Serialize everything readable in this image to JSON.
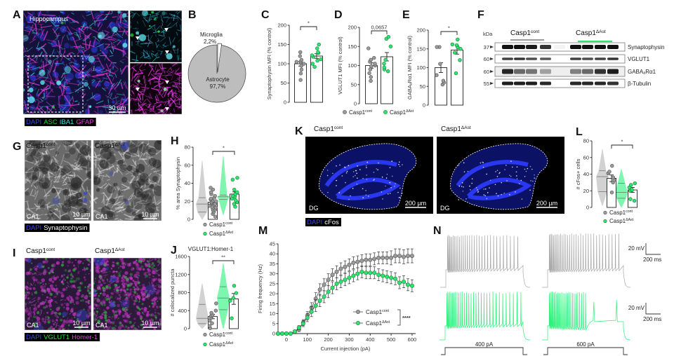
{
  "panel_labels": [
    "A",
    "B",
    "C",
    "D",
    "E",
    "F",
    "G",
    "H",
    "I",
    "J",
    "K",
    "L",
    "M",
    "N"
  ],
  "groups": {
    "base": "Casp1",
    "cont_sup": "cont",
    "ast_sup": "ΔAst"
  },
  "colors": {
    "control": "#9a9a9a",
    "ast": "#2fe36f",
    "violin_control": "#d2d2d2",
    "violin_ast": "#7cf7ad"
  },
  "panel_a": {
    "title": "Hippocampus",
    "scale": "30 µm",
    "legend": [
      {
        "text": "DAPI",
        "color": "#3347ff"
      },
      {
        "text": "ASC",
        "color": "#28c934"
      },
      {
        "text": "IBA1",
        "color": "#46dbe6"
      },
      {
        "text": "GFAP",
        "color": "#e63fe6"
      }
    ]
  },
  "panel_f": {
    "kda_label": "kDa",
    "markers": [
      "37",
      "60",
      "60",
      "55"
    ],
    "proteins": [
      "Synaptophysin",
      "VGLUT1",
      "GABAₐRα1",
      "β-Tubulin"
    ]
  },
  "panel_g": {
    "region": "CA1",
    "scale": "10 µm",
    "legend": [
      {
        "text": "DAPI",
        "color": "#3347ff"
      },
      {
        "text": "Synaptophysin",
        "color": "#ffffff"
      }
    ]
  },
  "panel_i": {
    "region": "CA1",
    "scale": "10 µm",
    "legend": [
      {
        "text": "DAPI",
        "color": "#3347ff"
      },
      {
        "text": "VGLUT1",
        "color": "#28e03a"
      },
      {
        "text": "Homer-1",
        "color": "#e63fe6"
      }
    ]
  },
  "panel_k": {
    "region": "DG",
    "scale": "200 µm",
    "legend": [
      {
        "text": "DAPI",
        "color": "#3347ff"
      },
      {
        "text": "cFos",
        "color": "#ffffff"
      }
    ]
  },
  "panel_n": {
    "scale_v": "20 mV",
    "scale_t": "200 ms",
    "steps": [
      "400 pA",
      "600 pA"
    ]
  },
  "chart_data": [
    {
      "panel": "B",
      "type": "pie",
      "slices": [
        {
          "label": "Astrocyte",
          "value": 97.7,
          "text": "97,7%",
          "color": "#bdbdbd"
        },
        {
          "label": "Microglia",
          "value": 2.2,
          "text": "2,2%",
          "color": "#ffffff"
        }
      ]
    },
    {
      "panel": "C",
      "type": "bar",
      "ylabel": "Synaptophysin MFI (% control)",
      "ylim": [
        0,
        200
      ],
      "yticks": [
        "0",
        "50",
        "100",
        "150",
        "200"
      ],
      "significance": "*",
      "series": [
        {
          "group": "control",
          "mean": 100,
          "sem": 6,
          "points": [
            58,
            75,
            85,
            95,
            100,
            103,
            105,
            106,
            110,
            120,
            130
          ]
        },
        {
          "group": "ast",
          "mean": 120,
          "sem": 6,
          "points": [
            92,
            100,
            108,
            112,
            118,
            122,
            128,
            130,
            140,
            150
          ]
        }
      ]
    },
    {
      "panel": "D",
      "type": "bar",
      "ylabel": "VGLUT1 MFI (% control)",
      "ylim": [
        0,
        200
      ],
      "yticks": [
        "0",
        "50",
        "100",
        "150",
        "200"
      ],
      "significance": "0,0657",
      "series": [
        {
          "group": "control",
          "mean": 100,
          "sem": 7,
          "points": [
            60,
            70,
            80,
            90,
            98,
            100,
            105,
            110,
            115,
            120,
            145
          ]
        },
        {
          "group": "ast",
          "mean": 123,
          "sem": 11,
          "points": [
            85,
            90,
            95,
            105,
            115,
            150,
            170,
            175
          ]
        }
      ],
      "legend": true
    },
    {
      "panel": "E",
      "type": "bar",
      "ylabel": "GABAₐRα1 MFI (% control)",
      "ylim": [
        0,
        200
      ],
      "yticks": [
        "0",
        "50",
        "100",
        "150",
        "200"
      ],
      "significance": "*",
      "series": [
        {
          "group": "control",
          "mean": 100,
          "sem": 13,
          "points": [
            55,
            60,
            65,
            80,
            110,
            155,
            155
          ]
        },
        {
          "group": "ast",
          "mean": 147,
          "sem": 11,
          "points": [
            85,
            120,
            140,
            150,
            155,
            160,
            162,
            175
          ]
        }
      ]
    },
    {
      "panel": "H",
      "type": "violin-bar",
      "ylabel": "% area Synaptophysin",
      "ylim": [
        0,
        80
      ],
      "yticks": [
        "0",
        "20",
        "40",
        "60",
        "80"
      ],
      "significance": "*",
      "violins": [
        {
          "group": "control",
          "min": 0,
          "q1": 8,
          "median": 17,
          "q3": 24,
          "max": 65
        },
        {
          "group": "ast",
          "min": 5,
          "q1": 22,
          "median": 25,
          "q3": 27,
          "max": 70
        }
      ],
      "series": [
        {
          "group": "control",
          "mean": 19,
          "sem": 1.5,
          "points": [
            3,
            6,
            8,
            10,
            11,
            12,
            13,
            14,
            15,
            16,
            17,
            18,
            19,
            20,
            21,
            22,
            23,
            24,
            26,
            28,
            30,
            33,
            35
          ]
        },
        {
          "group": "ast",
          "mean": 28,
          "sem": 2.5,
          "points": [
            14,
            17,
            19,
            21,
            23,
            25,
            26,
            28,
            30,
            33,
            44,
            46
          ]
        }
      ]
    },
    {
      "panel": "J",
      "type": "violin-bar",
      "title": "VGLUT1:Homer-1",
      "ylabel": "# colocalized puncta",
      "ylim": [
        0,
        1600
      ],
      "yticks": [
        "0",
        "400",
        "800",
        "1200",
        "1600"
      ],
      "significance": "**",
      "violins": [
        {
          "group": "control",
          "min": 0,
          "q1": 110,
          "median": 230,
          "q3": 540,
          "max": 1000
        },
        {
          "group": "ast",
          "min": 0,
          "q1": 420,
          "median": 680,
          "q3": 930,
          "max": 1450
        }
      ],
      "series": [
        {
          "group": "control",
          "mean": 270,
          "sem": 50,
          "points": [
            10,
            60,
            120,
            180,
            240,
            280,
            300,
            350,
            400,
            560
          ]
        },
        {
          "group": "ast",
          "mean": 660,
          "sem": 120,
          "points": [
            230,
            620,
            680,
            790,
            950
          ]
        }
      ]
    },
    {
      "panel": "L",
      "type": "violin-bar",
      "ylabel": "# cFos+ cells",
      "ylim": [
        0,
        80
      ],
      "yticks": [
        "0",
        "20",
        "40",
        "60",
        "80"
      ],
      "significance": "*",
      "violins": [
        {
          "group": "control",
          "min": 2,
          "q1": 19,
          "median": 37,
          "q3": 44,
          "max": 70
        },
        {
          "group": "ast",
          "min": 0,
          "q1": 11,
          "median": 18,
          "q3": 29,
          "max": 46
        }
      ],
      "series": [
        {
          "group": "control",
          "mean": 35,
          "sem": 4,
          "points": [
            18,
            30,
            33,
            36,
            41,
            43,
            50
          ]
        },
        {
          "group": "ast",
          "mean": 21,
          "sem": 3,
          "points": [
            8,
            10,
            20,
            21,
            24,
            27,
            29
          ]
        }
      ]
    },
    {
      "panel": "M",
      "type": "line",
      "xlabel": "Current injection (pA)",
      "ylabel": "Firing frequency (Hz)",
      "xlim": [
        -40,
        600
      ],
      "ylim": [
        0,
        45
      ],
      "xticks": [
        "0",
        "100",
        "200",
        "300",
        "400",
        "500",
        "600"
      ],
      "yticks": [
        "0",
        "5",
        "10",
        "15",
        "20",
        "25",
        "30",
        "35",
        "40",
        "45"
      ],
      "significance": "****",
      "x": [
        -40,
        -20,
        0,
        20,
        40,
        60,
        80,
        100,
        120,
        140,
        160,
        180,
        200,
        220,
        240,
        260,
        280,
        300,
        320,
        340,
        360,
        380,
        400,
        420,
        440,
        460,
        480,
        500,
        520,
        540,
        560,
        580,
        600
      ],
      "series": [
        {
          "group": "control",
          "values": [
            0,
            0,
            0,
            0,
            1,
            2,
            5.5,
            9,
            13,
            17.5,
            22,
            24.5,
            27,
            29.5,
            31,
            32.5,
            33.5,
            34.5,
            35.5,
            36,
            36.5,
            37,
            37,
            37.5,
            38,
            38,
            38,
            38,
            39,
            39,
            38.5,
            39,
            39
          ],
          "sem": [
            0,
            0,
            0,
            0,
            0.5,
            1,
            1.5,
            2,
            2.5,
            3,
            3,
            3,
            3,
            3,
            3,
            3,
            3,
            3,
            3,
            3,
            3,
            3,
            3,
            3,
            3,
            3,
            3,
            3.5,
            3.5,
            3.5,
            3.5,
            3.5,
            3.5
          ]
        },
        {
          "group": "ast",
          "values": [
            0,
            0,
            0,
            0,
            1,
            3,
            5,
            8,
            11,
            14,
            16.5,
            18.5,
            21,
            23,
            25,
            26,
            27,
            28,
            29,
            30,
            31,
            30.5,
            30.5,
            30.5,
            29.5,
            29,
            28.5,
            28,
            27.5,
            25.5,
            26,
            24.5,
            24
          ],
          "sem": [
            0,
            0,
            0,
            0,
            0.5,
            1,
            1.5,
            2,
            2.5,
            3,
            3,
            3,
            3,
            3,
            3,
            3,
            3,
            3,
            3,
            3,
            3,
            3,
            3,
            3,
            3,
            3,
            3,
            3,
            3,
            3,
            3,
            3,
            3
          ]
        }
      ]
    }
  ]
}
